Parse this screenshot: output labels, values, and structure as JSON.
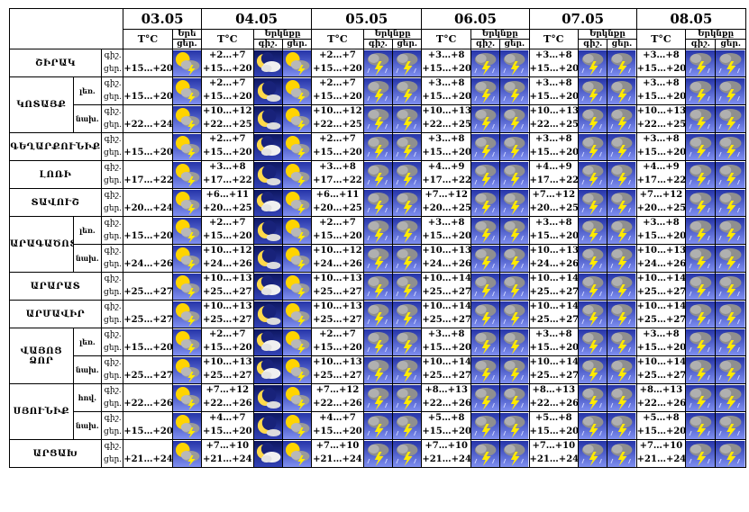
{
  "header": {
    "dates": [
      "03.05",
      "04.05",
      "05.05",
      "06.05",
      "07.05",
      "08.05"
    ],
    "temp_label": "T°C",
    "sky_label": "Երկնքը",
    "sky_label_first": "Երե",
    "day_label": "ցեր.",
    "night_label": "գիշ."
  },
  "labels": {
    "night": "գիշ.",
    "day": "ցեր."
  },
  "colors": {
    "night_sky": "#1f2a8c",
    "day_sky": "#3e4fd0",
    "sun": "#ffd400",
    "storm_cloud": "#8f8f8f",
    "moon": "#ffd94a"
  },
  "icons": {
    "sun-storm": "sun with storm cloud and lightning",
    "moon": "crescent moon at night",
    "moon-cloud": "crescent moon behind cloud",
    "storm": "storm cloud with lightning"
  },
  "regions": [
    {
      "name": "ՇԻՐԱԿ",
      "rows": [
        {
          "sub": "",
          "n03": "",
          "d03": "+15…+20",
          "n04": "+2…+7",
          "d04": "+15…+20",
          "n05": "+2…+7",
          "d05": "+15…+20",
          "n06": "+3…+8",
          "d06": "+15…+20",
          "n07": "+3…+8",
          "d07": "+15…+20",
          "n08": "+3…+8",
          "d08": "+15…+20"
        }
      ]
    },
    {
      "name": "ԿՈՏԱՅՔ",
      "rows": [
        {
          "sub": "լեռ.",
          "n03": "",
          "d03": "+15…+20",
          "n04": "+2…+7",
          "d04": "+15…+20",
          "n05": "+2…+7",
          "d05": "+15…+20",
          "n06": "+3…+8",
          "d06": "+15…+20",
          "n07": "+3…+8",
          "d07": "+15…+20",
          "n08": "+3…+8",
          "d08": "+15…+20"
        },
        {
          "sub": "նախ.",
          "n03": "",
          "d03": "+22…+24",
          "n04": "+10…+12",
          "d04": "+22…+25",
          "n05": "+10…+12",
          "d05": "+22…+25",
          "n06": "+10…+13",
          "d06": "+22…+25",
          "n07": "+10…+13",
          "d07": "+22…+25",
          "n08": "+10…+13",
          "d08": "+22…+25"
        }
      ]
    },
    {
      "name": "ԳԵՂԱՐՔՈՒՆԻՔ",
      "rows": [
        {
          "sub": "",
          "n03": "",
          "d03": "+15…+20",
          "n04": "+2…+7",
          "d04": "+15…+20",
          "n05": "+2…+7",
          "d05": "+15…+20",
          "n06": "+3…+8",
          "d06": "+15…+20",
          "n07": "+3…+8",
          "d07": "+15…+20",
          "n08": "+3…+8",
          "d08": "+15…+20"
        }
      ]
    },
    {
      "name": "ԼՈՌԻ",
      "rows": [
        {
          "sub": "",
          "n03": "",
          "d03": "+17…+22",
          "n04": "+3…+8",
          "d04": "+17…+22",
          "n05": "+3…+8",
          "d05": "+17…+22",
          "n06": "+4…+9",
          "d06": "+17…+22",
          "n07": "+4…+9",
          "d07": "+17…+22",
          "n08": "+4…+9",
          "d08": "+17…+22"
        }
      ]
    },
    {
      "name": "ՏԱՎՈՒՇ",
      "rows": [
        {
          "sub": "",
          "n03": "",
          "d03": "+20…+24",
          "n04": "+6…+11",
          "d04": "+20…+25",
          "n05": "+6…+11",
          "d05": "+20…+25",
          "n06": "+7…+12",
          "d06": "+20…+25",
          "n07": "+7…+12",
          "d07": "+20…+25",
          "n08": "+7…+12",
          "d08": "+20…+25"
        }
      ]
    },
    {
      "name": "ԱՐԱԳԱԾՈՏՆ",
      "rows": [
        {
          "sub": "լեռ.",
          "n03": "",
          "d03": "+15…+20",
          "n04": "+2…+7",
          "d04": "+15…+20",
          "n05": "+2…+7",
          "d05": "+15…+20",
          "n06": "+3…+8",
          "d06": "+15…+20",
          "n07": "+3…+8",
          "d07": "+15…+20",
          "n08": "+3…+8",
          "d08": "+15…+20"
        },
        {
          "sub": "նախ.",
          "n03": "",
          "d03": "+24…+26",
          "n04": "+10…+12",
          "d04": "+24…+26",
          "n05": "+10…+12",
          "d05": "+24…+26",
          "n06": "+10…+13",
          "d06": "+24…+26",
          "n07": "+10…+13",
          "d07": "+24…+26",
          "n08": "+10…+13",
          "d08": "+24…+26"
        }
      ]
    },
    {
      "name": "ԱՐԱՐԱՏ",
      "rows": [
        {
          "sub": "",
          "n03": "",
          "d03": "+25…+27",
          "n04": "+10…+13",
          "d04": "+25…+27",
          "n05": "+10…+13",
          "d05": "+25…+27",
          "n06": "+10…+14",
          "d06": "+25…+27",
          "n07": "+10…+14",
          "d07": "+25…+27",
          "n08": "+10…+14",
          "d08": "+25…+27"
        }
      ]
    },
    {
      "name": "ԱՐՄԱՎԻՐ",
      "rows": [
        {
          "sub": "",
          "n03": "",
          "d03": "+25…+27",
          "n04": "+10…+13",
          "d04": "+25…+27",
          "n05": "+10…+13",
          "d05": "+25…+27",
          "n06": "+10…+14",
          "d06": "+25…+27",
          "n07": "+10…+14",
          "d07": "+25…+27",
          "n08": "+10…+14",
          "d08": "+25…+27"
        }
      ]
    },
    {
      "name": "ՎԱՅՈՑ ՁՈՐ",
      "rows": [
        {
          "sub": "լեռ.",
          "n03": "",
          "d03": "+15…+20",
          "n04": "+2…+7",
          "d04": "+15…+20",
          "n05": "+2…+7",
          "d05": "+15…+20",
          "n06": "+3…+8",
          "d06": "+15…+20",
          "n07": "+3…+8",
          "d07": "+15…+20",
          "n08": "+3…+8",
          "d08": "+15…+20"
        },
        {
          "sub": "նախ.",
          "n03": "",
          "d03": "+25…+27",
          "n04": "+10…+13",
          "d04": "+25…+27",
          "n05": "+10…+13",
          "d05": "+25…+27",
          "n06": "+10…+14",
          "d06": "+25…+27",
          "n07": "+10…+14",
          "d07": "+25…+27",
          "n08": "+10…+14",
          "d08": "+25…+27"
        }
      ]
    },
    {
      "name": "ՍՅՈՒՆԻՔ",
      "rows": [
        {
          "sub": "հով.",
          "n03": "",
          "d03": "+22…+26",
          "n04": "+7…+12",
          "d04": "+22…+26",
          "n05": "+7…+12",
          "d05": "+22…+26",
          "n06": "+8…+13",
          "d06": "+22…+26",
          "n07": "+8…+13",
          "d07": "+22…+26",
          "n08": "+8…+13",
          "d08": "+22…+26"
        },
        {
          "sub": "նախ.",
          "n03": "",
          "d03": "+15…+20",
          "n04": "+4…+7",
          "d04": "+15…+20",
          "n05": "+4…+7",
          "d05": "+15…+20",
          "n06": "+5…+8",
          "d06": "+15…+20",
          "n07": "+5…+8",
          "d07": "+15…+20",
          "n08": "+5…+8",
          "d08": "+15…+20"
        }
      ]
    },
    {
      "name": "ԱՐՑԱԽ",
      "rows": [
        {
          "sub": "",
          "n03": "",
          "d03": "+21…+24",
          "n04": "+7…+10",
          "d04": "+21…+24",
          "n05": "+7…+10",
          "d05": "+21…+24",
          "n06": "+7…+10",
          "d06": "+21…+24",
          "n07": "+7…+10",
          "d07": "+21…+24",
          "n08": "+7…+10",
          "d08": "+21…+24"
        }
      ]
    }
  ]
}
